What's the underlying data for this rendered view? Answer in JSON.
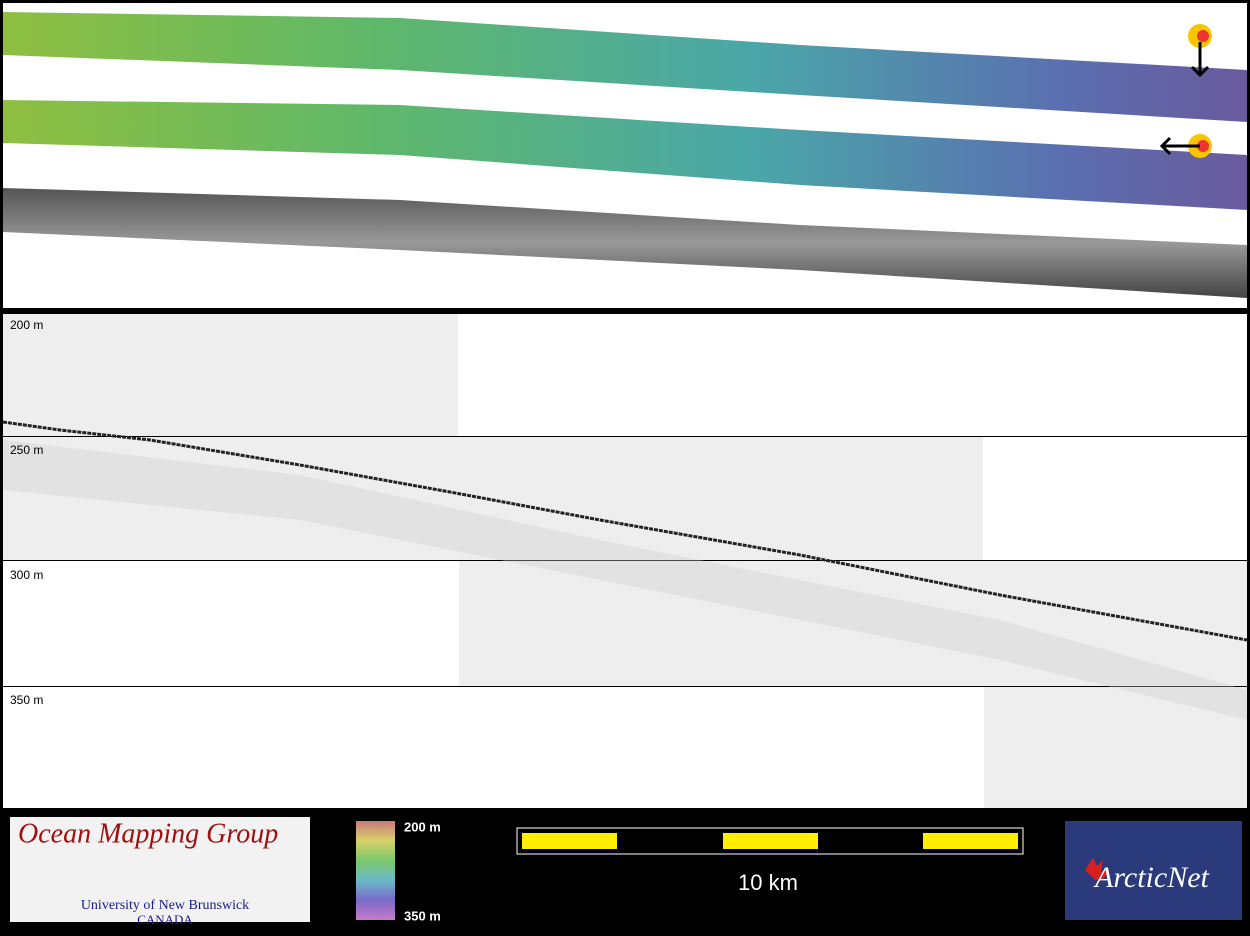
{
  "panels": {
    "depth_labels": [
      "200 m",
      "250 m",
      "300 m",
      "350 m"
    ]
  },
  "footer": {
    "logo_title": "Ocean Mapping Group",
    "logo_university": "University of New Brunswick",
    "logo_country": "CANADA",
    "color_scale": {
      "top": "200 m",
      "bottom": "350 m"
    },
    "scale_bar": "10 km",
    "partner_logo": "ArcticNet"
  }
}
